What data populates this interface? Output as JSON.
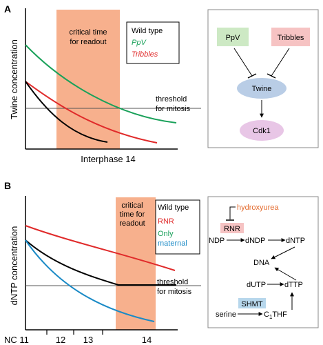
{
  "panel_a": {
    "letter": "A",
    "ylabel": "Twine concentration",
    "xlabel": "Interphase 14",
    "window_label": [
      "critical time",
      "for readout"
    ],
    "threshold_label": [
      "threshold",
      "for mitosis"
    ],
    "legend": {
      "wild": "Wild type",
      "ppv": "PpV",
      "tribbles": "Tribbles"
    },
    "diagram": {
      "ppv": "PpV",
      "tribbles": "Tribbles",
      "twine": "Twine",
      "cdk1": "Cdk1"
    }
  },
  "panel_b": {
    "letter": "B",
    "ylabel": "dNTP concentration",
    "window_label": [
      "critical",
      "time for",
      "readout"
    ],
    "threshold_label": [
      "threshold",
      "for mitosis"
    ],
    "legend": {
      "wild": "Wild type",
      "rnr": "RNR",
      "maternal": [
        "Only",
        "maternal"
      ]
    },
    "xticks": [
      "NC 11",
      "12",
      "13",
      "14"
    ],
    "pathway": {
      "hydroxyurea": "hydroxyurea",
      "rnr": "RNR",
      "ndp": "NDP",
      "dndp": "dNDP",
      "dntp": "dNTP",
      "dna": "DNA",
      "dutp": "dUTP",
      "dttp": "dTTP",
      "shmt": "SHMT",
      "serine": "serine",
      "thf_c": "C",
      "thf_sub": "1",
      "thf_rest": "THF"
    }
  },
  "colors": {
    "window": "#f7b08d",
    "wild": "#000000",
    "green": "#1aa15a",
    "red": "#e02a2a",
    "blue": "#1a8ac6",
    "orange_text": "#e46a2c",
    "twine_node": "#b9cde6",
    "cdk1_node": "#e8c6e6",
    "ppv_box": "#cde9c4",
    "tribbles_box": "#f6c3c3",
    "rnr_box": "#f6c3c3",
    "shmt_box": "#b7d7ec"
  }
}
